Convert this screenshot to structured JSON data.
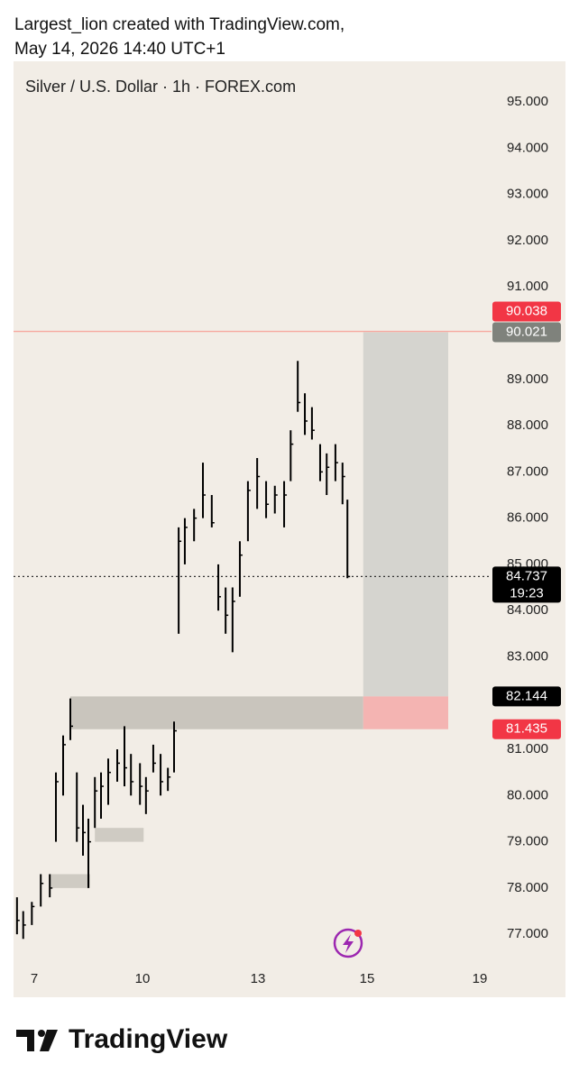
{
  "header": {
    "line1": "Largest_lion created with TradingView.com,",
    "line2": "May 14, 2026 14:40 UTC+1"
  },
  "footer": {
    "logo": "TradingView"
  },
  "chart_data": {
    "type": "ohlc",
    "title": "Silver / U.S. Dollar · 1h · FOREX.com",
    "x": [
      6.5,
      6.68,
      6.93,
      7.18,
      7.43,
      7.6,
      7.8,
      8.0,
      8.18,
      8.35,
      8.5,
      8.68,
      8.85,
      9.05,
      9.3,
      9.5,
      9.68,
      9.93,
      10.09,
      10.28,
      10.47,
      10.66,
      10.82,
      10.94,
      11.1,
      11.34,
      11.57,
      11.8,
      11.97,
      12.16,
      12.34,
      12.53,
      12.74,
      12.98,
      13.15,
      13.31,
      13.48,
      13.6,
      13.73,
      13.86,
      13.99,
      14.14,
      14.26,
      14.42,
      14.55,
      14.64
    ],
    "low": [
      77.0,
      76.9,
      77.2,
      77.6,
      77.8,
      79.0,
      80.0,
      81.2,
      79.0,
      78.7,
      78.0,
      79.3,
      79.5,
      79.8,
      80.3,
      80.2,
      80.0,
      79.8,
      79.6,
      80.5,
      80.0,
      80.1,
      80.5,
      83.5,
      85.0,
      85.5,
      86.0,
      85.8,
      84.0,
      83.5,
      83.1,
      84.3,
      85.5,
      86.2,
      86.0,
      86.1,
      85.8,
      86.8,
      88.3,
      87.8,
      87.7,
      86.8,
      86.5,
      86.8,
      86.3,
      84.7
    ],
    "high": [
      77.8,
      77.5,
      77.7,
      78.3,
      78.3,
      80.5,
      81.3,
      82.1,
      80.5,
      79.8,
      79.5,
      80.4,
      80.5,
      80.8,
      81.0,
      81.5,
      80.9,
      80.7,
      80.4,
      81.1,
      80.9,
      80.6,
      81.6,
      85.8,
      86.0,
      86.2,
      87.2,
      86.5,
      85.0,
      84.5,
      84.5,
      85.5,
      86.8,
      87.3,
      86.8,
      86.7,
      86.8,
      87.9,
      89.4,
      88.7,
      88.4,
      87.6,
      87.4,
      87.6,
      87.2,
      86.4
    ],
    "close": [
      77.3,
      77.2,
      77.6,
      78.1,
      78.0,
      80.3,
      81.1,
      81.5,
      79.3,
      79.2,
      79.0,
      80.1,
      80.2,
      80.5,
      80.7,
      80.6,
      80.3,
      80.2,
      80.1,
      80.7,
      80.3,
      80.4,
      81.4,
      85.5,
      85.8,
      86.0,
      86.5,
      85.9,
      84.3,
      83.9,
      84.2,
      85.2,
      86.6,
      86.9,
      86.3,
      86.5,
      86.5,
      87.6,
      88.5,
      88.1,
      87.9,
      87.0,
      87.1,
      87.2,
      86.9,
      84.737
    ],
    "color": "#000000",
    "xlim": [
      6.4,
      19.4
    ],
    "xticks": [
      7,
      10,
      13,
      15,
      19
    ],
    "ylim": [
      76.34,
      95.88
    ],
    "yticks": [
      {
        "value": 95,
        "label": "95.000"
      },
      {
        "value": 94,
        "label": "94.000"
      },
      {
        "value": 93,
        "label": "93.000"
      },
      {
        "value": 92,
        "label": "92.000"
      },
      {
        "value": 91,
        "label": "91.000"
      },
      {
        "value": 89,
        "label": "89.000"
      },
      {
        "value": 88,
        "label": "88.000"
      },
      {
        "value": 87,
        "label": "87.000"
      },
      {
        "value": 86,
        "label": "86.000"
      },
      {
        "value": 85,
        "label": "85.000"
      },
      {
        "value": 84,
        "label": "84.000"
      },
      {
        "value": 83,
        "label": "83.000"
      },
      {
        "value": 81,
        "label": "81.000"
      },
      {
        "value": 80,
        "label": "80.000"
      },
      {
        "value": 79,
        "label": "79.000"
      },
      {
        "value": 78,
        "label": "78.000"
      },
      {
        "value": 77,
        "label": "77.000"
      }
    ],
    "zones": [
      {
        "low": 81.435,
        "high": 82.144,
        "x0": 8.0,
        "x1": 14.93,
        "color": "#c9c5bd"
      },
      {
        "low": 78.0,
        "high": 78.3,
        "x0": 7.43,
        "x1": 8.55,
        "color": "#cfcbc3"
      },
      {
        "low": 79.0,
        "high": 79.3,
        "x0": 8.68,
        "x1": 10.03,
        "color": "#cfcbc3"
      },
      {
        "low": 82.144,
        "high": 90.021,
        "x0": 14.93,
        "x1": 17.88,
        "color": "#d5d4cf"
      },
      {
        "low": 81.435,
        "high": 82.144,
        "x0": 14.93,
        "x1": 17.88,
        "color": "#f4b4b2"
      }
    ],
    "levels": [
      {
        "value": 90.038,
        "color": "#f7a9a0",
        "style": "solid"
      },
      {
        "value": 84.737,
        "color": "#333333",
        "style": "dotted"
      }
    ],
    "price_labels": [
      {
        "value": 90.038,
        "color": "#f23645"
      },
      {
        "value": 90.021,
        "color": "#7f827c"
      },
      {
        "value": 84.737,
        "color": "#000000",
        "sub": "19:23"
      },
      {
        "value": 82.144,
        "color": "#000000"
      },
      {
        "value": 81.435,
        "color": "#f23645"
      }
    ]
  }
}
